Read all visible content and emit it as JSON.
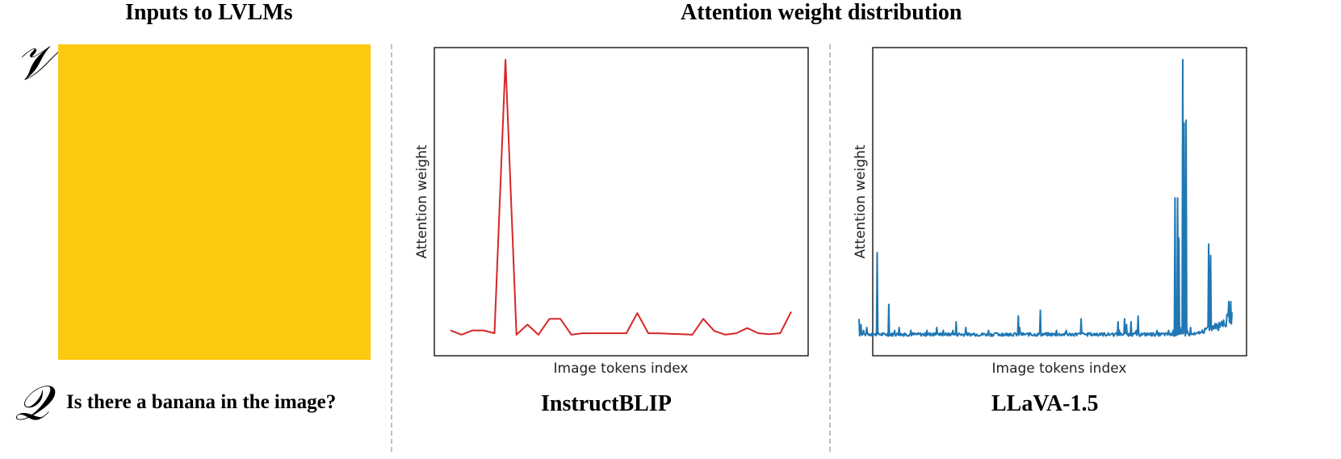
{
  "headers": {
    "inputs": "Inputs to LVLMs",
    "attention": "Attention weight distribution"
  },
  "inputs": {
    "visual_symbol": "𝒱",
    "query_symbol": "𝒬",
    "image_color": "#FDC90E",
    "question": "Is there a banana in the image?"
  },
  "colors": {
    "instructblip_line": "#d62728",
    "llava_line": "#1f77b4"
  },
  "chart_data": [
    {
      "type": "line",
      "title": "InstructBLIP",
      "xlabel": "Image tokens index",
      "ylabel": "Attention weight",
      "ticks": "none",
      "grid": false,
      "ylim": [
        0,
        1
      ],
      "series": [
        {
          "x": [
            0,
            1,
            2,
            3,
            4,
            5,
            6,
            7,
            8,
            9,
            10,
            11,
            12,
            13,
            14,
            15,
            16,
            17,
            18,
            19,
            20,
            21,
            22,
            23,
            24,
            25,
            26,
            27,
            28,
            29,
            30,
            31
          ],
          "values": [
            0.06,
            0.045,
            0.06,
            0.06,
            0.05,
            1.0,
            0.045,
            0.08,
            0.045,
            0.1,
            0.1,
            0.045,
            0.05,
            0.05,
            0.05,
            0.05,
            0.05,
            0.12,
            0.05,
            0.05,
            0.048,
            0.047,
            0.045,
            0.1,
            0.058,
            0.045,
            0.05,
            0.068,
            0.05,
            0.047,
            0.05,
            0.125
          ]
        }
      ]
    },
    {
      "type": "line",
      "title": "LLaVA-1.5",
      "xlabel": "Image tokens index",
      "ylabel": "Attention weight",
      "ticks": "none",
      "grid": false,
      "ylim": [
        0,
        1
      ],
      "series": [
        {
          "x_max": 576,
          "baseline": 0.04,
          "values_sparse": [
            [
              0,
              0.1
            ],
            [
              3,
              0.08
            ],
            [
              7,
              0.06
            ],
            [
              12,
              0.07
            ],
            [
              20,
              0.05
            ],
            [
              28,
              0.33
            ],
            [
              35,
              0.05
            ],
            [
              46,
              0.15
            ],
            [
              55,
              0.06
            ],
            [
              62,
              0.07
            ],
            [
              70,
              0.05
            ],
            [
              80,
              0.06
            ],
            [
              95,
              0.05
            ],
            [
              105,
              0.06
            ],
            [
              114,
              0.05
            ],
            [
              120,
              0.07
            ],
            [
              130,
              0.06
            ],
            [
              138,
              0.05
            ],
            [
              145,
              0.06
            ],
            [
              150,
              0.09
            ],
            [
              155,
              0.05
            ],
            [
              165,
              0.07
            ],
            [
              178,
              0.05
            ],
            [
              190,
              0.04
            ],
            [
              200,
              0.06
            ],
            [
              212,
              0.05
            ],
            [
              221,
              0.05
            ],
            [
              233,
              0.05
            ],
            [
              242,
              0.05
            ],
            [
              250,
              0.05
            ],
            [
              265,
              0.05
            ],
            [
              280,
              0.13
            ],
            [
              290,
              0.05
            ],
            [
              305,
              0.06
            ],
            [
              320,
              0.06
            ],
            [
              335,
              0.05
            ],
            [
              345,
              0.05
            ],
            [
              355,
              0.05
            ],
            [
              367,
              0.05
            ],
            [
              372,
              0.05
            ],
            [
              378,
              0.05
            ],
            [
              385,
              0.05
            ],
            [
              391,
              0.05
            ],
            [
              398,
              0.05
            ],
            [
              405,
              0.05
            ],
            [
              412,
              0.05
            ],
            [
              420,
              0.06
            ],
            [
              428,
              0.06
            ],
            [
              436,
              0.05
            ],
            [
              445,
              0.05
            ],
            [
              452,
              0.05
            ],
            [
              460,
              0.06
            ],
            [
              470,
              0.05
            ],
            [
              478,
              0.06
            ],
            [
              482,
              0.05
            ],
            [
              488,
              0.05
            ],
            [
              492,
              0.52
            ],
            [
              496,
              0.38
            ],
            [
              500,
              0.94
            ],
            [
              502,
              0.78
            ],
            [
              506,
              0.05
            ],
            [
              512,
              0.07
            ],
            [
              518,
              0.05
            ],
            [
              524,
              0.05
            ],
            [
              528,
              0.05
            ],
            [
              532,
              0.05
            ],
            [
              538,
              0.05
            ],
            [
              543,
              0.05
            ],
            [
              548,
              0.05
            ],
            [
              553,
              0.08
            ],
            [
              558,
              0.07
            ],
            [
              563,
              0.09
            ],
            [
              568,
              0.1
            ],
            [
              571,
              0.16
            ],
            [
              574,
              0.17
            ],
            [
              576,
              0.1
            ]
          ],
          "spikes": [
            [
              246,
              0.11
            ],
            [
              248,
              0.07
            ],
            [
              250,
              0.05
            ],
            [
              343,
              0.1
            ],
            [
              400,
              0.09
            ],
            [
              402,
              0.06
            ],
            [
              404,
              0.05
            ],
            [
              410,
              0.1
            ],
            [
              413,
              0.08
            ],
            [
              420,
              0.09
            ],
            [
              431,
              0.11
            ],
            [
              485,
              0.06
            ],
            [
              488,
              0.52
            ],
            [
              490,
              0.06
            ],
            [
              494,
              0.38
            ],
            [
              496,
              0.07
            ],
            [
              500,
              1.0
            ],
            [
              503,
              0.08
            ],
            [
              505,
              0.79
            ],
            [
              507,
              0.06
            ],
            [
              540,
              0.36
            ],
            [
              541,
              0.06
            ],
            [
              543,
              0.32
            ],
            [
              545,
              0.06
            ],
            [
              568,
              0.11
            ],
            [
              574,
              0.16
            ]
          ]
        }
      ]
    }
  ]
}
